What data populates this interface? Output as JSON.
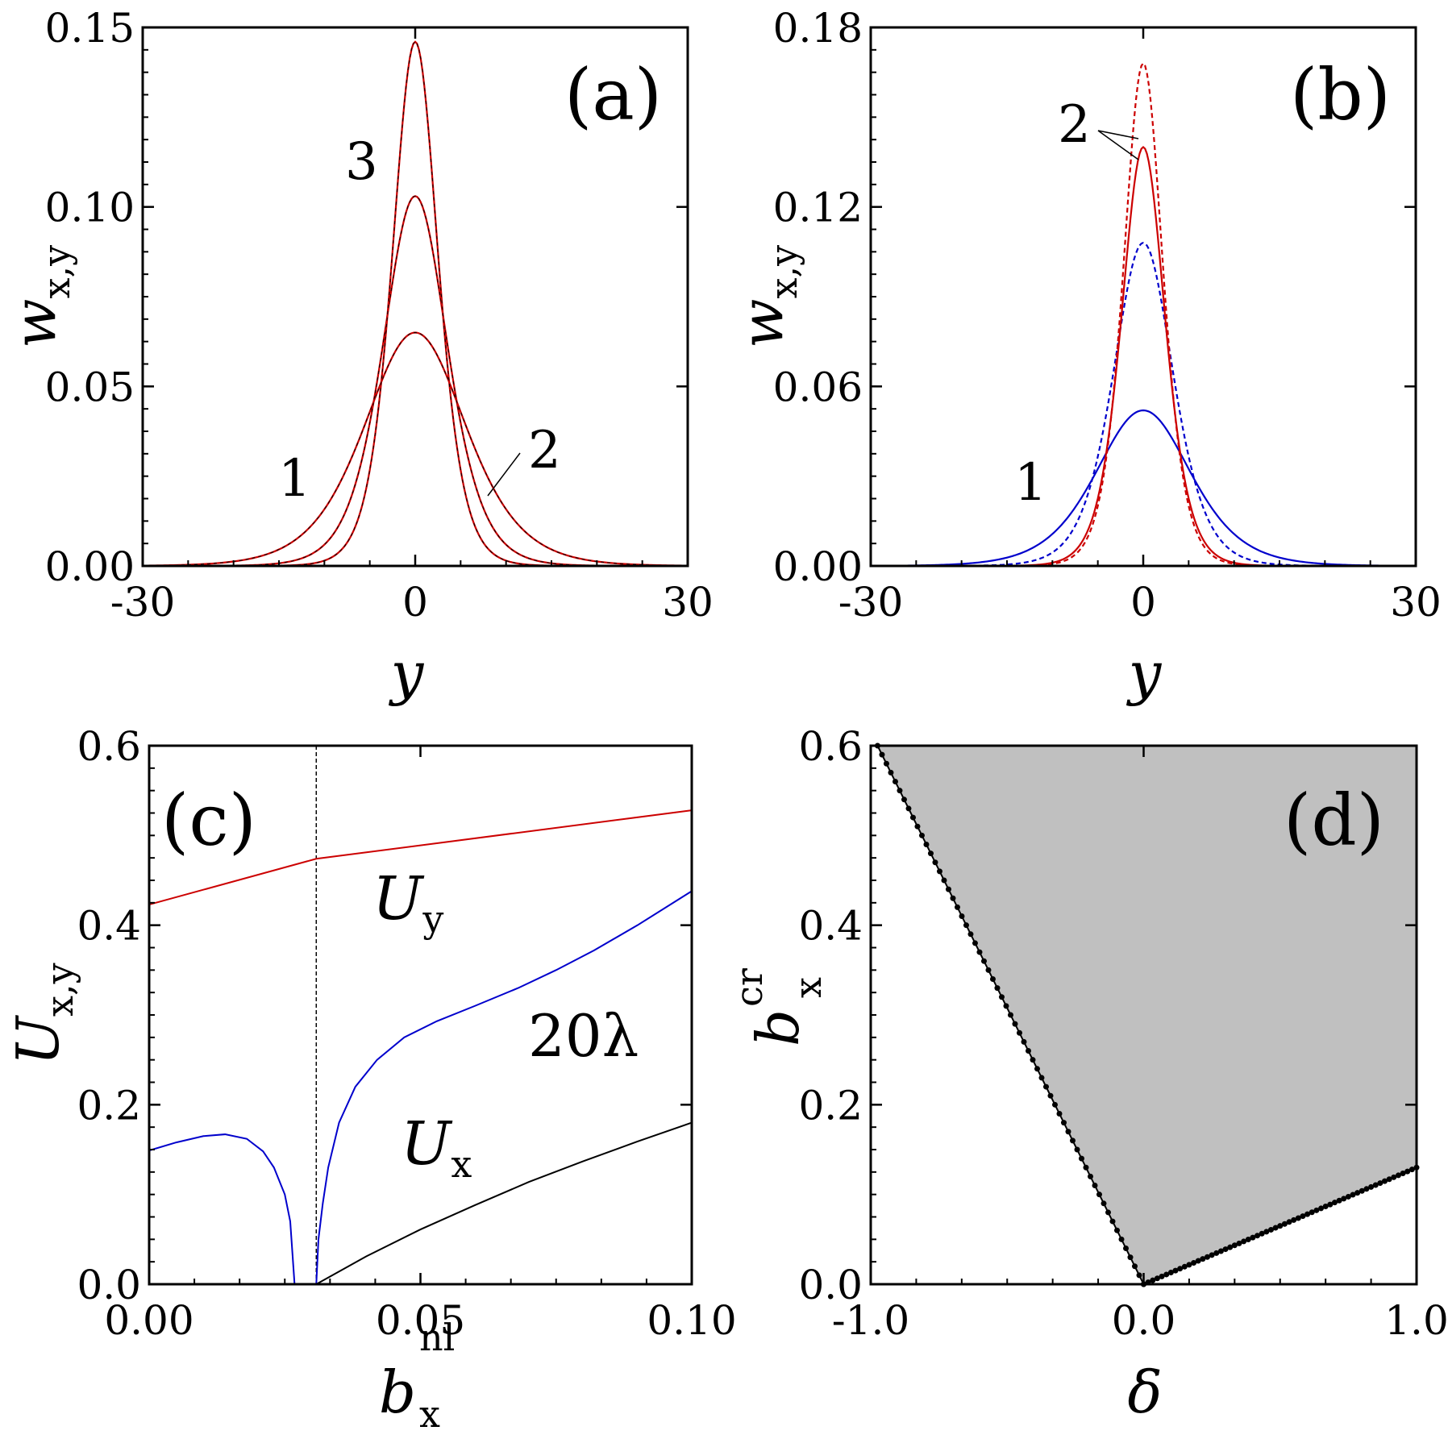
{
  "chart_data": [
    {
      "panel": "(a)",
      "type": "line",
      "xlabel": "y",
      "ylabel": "w",
      "ylabel_subscript": "x,y",
      "xlim": [
        -30,
        30
      ],
      "ylim": [
        0,
        0.15
      ],
      "xticks": [
        -30,
        0,
        30
      ],
      "xtick_labels": [
        "-30",
        "0",
        "30"
      ],
      "yticks": [
        0,
        0.05,
        0.1,
        0.15
      ],
      "ytick_labels": [
        "0.00",
        "0.05",
        "0.10",
        "0.15"
      ],
      "curve_labels": [
        "1",
        "2",
        "3"
      ],
      "series": [
        {
          "name": "1",
          "amplitude": 0.065,
          "width": 7.5,
          "color": "#cc0000",
          "style": "solid"
        },
        {
          "name": "2",
          "amplitude": 0.103,
          "width": 4.75,
          "color": "#cc0000",
          "style": "solid"
        },
        {
          "name": "3",
          "amplitude": 0.146,
          "width": 3.35,
          "color": "#cc0000",
          "style": "solid"
        }
      ]
    },
    {
      "panel": "(b)",
      "type": "line",
      "xlabel": "y",
      "ylabel": "w",
      "ylabel_subscript": "x,y",
      "xlim": [
        -30,
        30
      ],
      "ylim": [
        0,
        0.18
      ],
      "xticks": [
        -30,
        0,
        30
      ],
      "xtick_labels": [
        "-30",
        "0",
        "30"
      ],
      "yticks": [
        0,
        0.06,
        0.12,
        0.18
      ],
      "ytick_labels": [
        "0.00",
        "0.06",
        "0.12",
        "0.18"
      ],
      "curve_labels": [
        "1",
        "2"
      ],
      "series": [
        {
          "name": "1 solid",
          "amplitude": 0.052,
          "width": 7.0,
          "color": "#0000cc",
          "style": "solid"
        },
        {
          "name": "1 dashed",
          "amplitude": 0.108,
          "width": 4.4,
          "color": "#0000cc",
          "style": "dashed"
        },
        {
          "name": "2 solid",
          "amplitude": 0.14,
          "width": 3.2,
          "color": "#cc0000",
          "style": "solid"
        },
        {
          "name": "2 dashed",
          "amplitude": 0.168,
          "width": 2.9,
          "color": "#cc0000",
          "style": "dashed"
        }
      ]
    },
    {
      "panel": "(c)",
      "type": "line",
      "xlabel": "b",
      "xlabel_subscript": "x",
      "xlabel_superscript": "nl",
      "ylabel": "U",
      "ylabel_subscript": "x,y",
      "xlim": [
        0,
        0.1
      ],
      "ylim": [
        0,
        0.6
      ],
      "xticks": [
        0,
        0.05,
        0.1
      ],
      "xtick_labels": [
        "0.00",
        "0.05",
        "0.10"
      ],
      "yticks": [
        0,
        0.2,
        0.4,
        0.6
      ],
      "ytick_labels": [
        "0.0",
        "0.2",
        "0.4",
        "0.6"
      ],
      "vline_x": 0.0308,
      "series": [
        {
          "name": "U_y",
          "color": "#cc0000",
          "x": [
            0,
            0.0308,
            0.1
          ],
          "y": [
            0.423,
            0.474,
            0.528
          ]
        },
        {
          "name": "20λ",
          "color": "#0000cc",
          "x": [
            0,
            0.005,
            0.01,
            0.014,
            0.018,
            0.021,
            0.023,
            0.025,
            0.026,
            0.0268
          ],
          "y": [
            0.149,
            0.158,
            0.165,
            0.167,
            0.162,
            0.148,
            0.13,
            0.1,
            0.07,
            0.0
          ]
        },
        {
          "name": "20λ-upper",
          "color": "#0000cc",
          "x": [
            0.0308,
            0.0312,
            0.032,
            0.033,
            0.035,
            0.038,
            0.042,
            0.047,
            0.053,
            0.06,
            0.068,
            0.075,
            0.082,
            0.09,
            0.1
          ],
          "y": [
            0.0,
            0.05,
            0.09,
            0.13,
            0.18,
            0.22,
            0.25,
            0.275,
            0.293,
            0.31,
            0.33,
            0.35,
            0.372,
            0.4,
            0.438
          ]
        },
        {
          "name": "U_x",
          "color": "#000000",
          "x": [
            0.0308,
            0.04,
            0.05,
            0.06,
            0.07,
            0.08,
            0.09,
            0.1
          ],
          "y": [
            0.0,
            0.031,
            0.061,
            0.088,
            0.114,
            0.137,
            0.159,
            0.18
          ]
        }
      ],
      "labels": {
        "uy": "U",
        "uy_sub": "y",
        "lambda": "20λ",
        "ux": "U",
        "ux_sub": "x"
      }
    },
    {
      "panel": "(d)",
      "type": "area",
      "xlabel": "δ",
      "ylabel": "b",
      "ylabel_subscript": "x",
      "ylabel_superscript": "cr",
      "xlim": [
        -1,
        1
      ],
      "ylim": [
        0,
        0.6
      ],
      "xticks": [
        -1,
        0,
        1
      ],
      "xtick_labels": [
        "-1.0",
        "0.0",
        "1.0"
      ],
      "yticks": [
        0,
        0.2,
        0.4,
        0.6
      ],
      "ytick_labels": [
        "0.0",
        "0.2",
        "0.4",
        "0.6"
      ],
      "boundary_left": {
        "x": [
          -0.975,
          0
        ],
        "y": [
          0.6,
          0
        ]
      },
      "boundary_right": {
        "x": [
          0,
          1
        ],
        "y": [
          0,
          0.13
        ]
      },
      "fill_color": "#c0c0c0"
    }
  ],
  "panel_tags": [
    "(a)",
    "(b)",
    "(c)",
    "(d)"
  ]
}
